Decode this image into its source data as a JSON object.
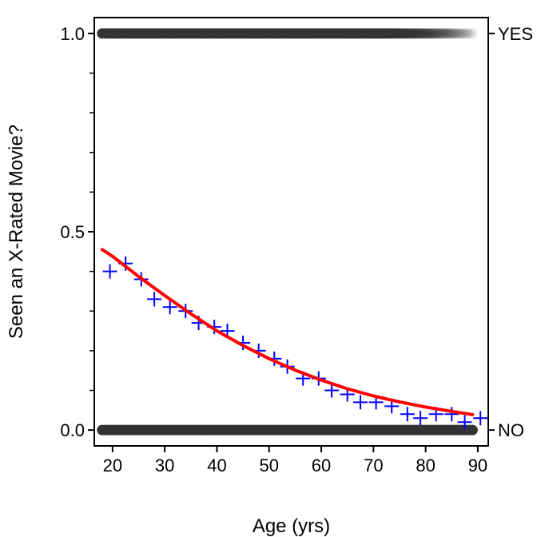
{
  "chart_data": {
    "type": "scatter",
    "title": "",
    "xlabel": "Age (yrs)",
    "ylabel": "Seen an X-Rated Movie?",
    "xlim": [
      16.5,
      92
    ],
    "ylim": [
      -0.04,
      1.04
    ],
    "x_ticks": [
      20,
      30,
      40,
      50,
      60,
      70,
      80,
      90
    ],
    "y_ticks": [
      0.0,
      0.5,
      1.0
    ],
    "x_tick_labels": [
      "20",
      "30",
      "40",
      "50",
      "60",
      "70",
      "80",
      "90"
    ],
    "y_tick_labels": [
      "0.0",
      "0.5",
      "1.0"
    ],
    "y_minor_ticks": [
      0.1,
      0.2,
      0.3,
      0.4,
      0.6,
      0.7,
      0.8,
      0.9
    ],
    "right_labels": [
      {
        "y": 1.0,
        "text": "YES"
      },
      {
        "y": 0.0,
        "text": "NO"
      }
    ],
    "grid": false,
    "legend": "none",
    "raw_points": {
      "color": "#333333",
      "yes": {
        "y": 1.0,
        "x_min": 18,
        "x_max": 89,
        "opacity_start": 1.0,
        "opacity_end": 0.08,
        "opacity_fade_from": 72
      },
      "no": {
        "y": 0.0,
        "x_min": 18,
        "x_max": 89,
        "opacity_start": 1.0,
        "opacity_end": 1.0,
        "opacity_fade_from": 89
      }
    },
    "series": [
      {
        "type": "scatter",
        "marker": "plus",
        "color": "#0000ff",
        "x": [
          19.5,
          22.5,
          25.5,
          28,
          31,
          34,
          36.5,
          39.5,
          42,
          45,
          48,
          51,
          53.5,
          56.5,
          59.5,
          62,
          65,
          67.5,
          70.5,
          73.5,
          76.5,
          79,
          82,
          85,
          87.5,
          90.5
        ],
        "values": [
          0.4,
          0.42,
          0.38,
          0.33,
          0.31,
          0.3,
          0.27,
          0.26,
          0.25,
          0.22,
          0.2,
          0.18,
          0.16,
          0.13,
          0.13,
          0.1,
          0.09,
          0.07,
          0.07,
          0.06,
          0.04,
          0.03,
          0.04,
          0.04,
          0.02,
          0.03
        ]
      },
      {
        "type": "line",
        "color": "#ff0000",
        "x": [
          18,
          20,
          25,
          30,
          35,
          40,
          45,
          50,
          55,
          60,
          65,
          70,
          75,
          80,
          85,
          89
        ],
        "values": [
          0.455,
          0.438,
          0.387,
          0.339,
          0.293,
          0.25,
          0.213,
          0.18,
          0.151,
          0.126,
          0.104,
          0.086,
          0.071,
          0.058,
          0.047,
          0.039
        ]
      }
    ]
  }
}
